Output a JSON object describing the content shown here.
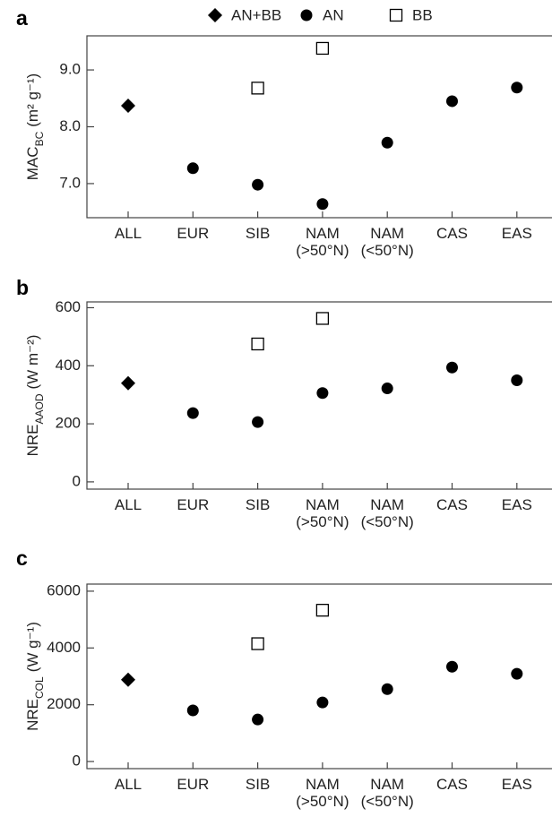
{
  "chart_data": [
    {
      "type": "scatter",
      "label": "a",
      "ylabel": {
        "name": "MAC",
        "subscript": "BC",
        "units": "(m² g⁻¹)"
      },
      "categories": [
        "ALL",
        "EUR",
        "SIB",
        "NAM (>50°N)",
        "NAM (<50°N)",
        "CAS",
        "EAS"
      ],
      "ylim": [
        6.4,
        9.6
      ],
      "yticks": [
        {
          "value": 7,
          "label": "7.0"
        },
        {
          "value": 8,
          "label": "8.0"
        },
        {
          "value": 9,
          "label": "9.0"
        }
      ],
      "series": [
        {
          "name": "AN+BB",
          "marker": "diamond",
          "color": "#000000",
          "values": [
            8.37,
            null,
            null,
            null,
            null,
            null,
            null
          ]
        },
        {
          "name": "AN",
          "marker": "circle",
          "color": "#000000",
          "values": [
            null,
            7.27,
            6.98,
            6.64,
            7.72,
            8.45,
            8.69
          ]
        },
        {
          "name": "BB",
          "marker": "open-square",
          "color": "#000000",
          "values": [
            null,
            null,
            8.68,
            9.38,
            null,
            null,
            null
          ]
        }
      ]
    },
    {
      "type": "scatter",
      "label": "b",
      "ylabel": {
        "name": "NRE",
        "subscript": "AAOD",
        "units": "(W m⁻²)"
      },
      "categories": [
        "ALL",
        "EUR",
        "SIB",
        "NAM (>50°N)",
        "NAM (<50°N)",
        "CAS",
        "EAS"
      ],
      "ylim": [
        -25,
        620
      ],
      "yticks": [
        0,
        200,
        400,
        600
      ],
      "series": [
        {
          "marker": "diamond",
          "color": "#000000",
          "values": [
            340,
            null,
            null,
            null,
            null,
            null,
            null
          ]
        },
        {
          "marker": "circle",
          "color": "#000000",
          "values": [
            null,
            237,
            206,
            306,
            322,
            394,
            350
          ]
        },
        {
          "marker": "open-square",
          "color": "#000000",
          "values": [
            null,
            null,
            475,
            563,
            null,
            null,
            null
          ]
        }
      ]
    },
    {
      "type": "scatter",
      "label": "c",
      "ylabel": {
        "name": "NRE",
        "subscript": "COL",
        "units": "(W g⁻¹)"
      },
      "categories": [
        "ALL",
        "EUR",
        "SIB",
        "NAM (>50°N)",
        "NAM (<50°N)",
        "CAS",
        "EAS"
      ],
      "ylim": [
        -250,
        6250
      ],
      "yticks": [
        0,
        2000,
        4000,
        6000
      ],
      "series": [
        {
          "marker": "diamond",
          "color": "#000000",
          "values": [
            2880,
            null,
            null,
            null,
            null,
            null,
            null
          ]
        },
        {
          "marker": "circle",
          "color": "#000000",
          "values": [
            null,
            1800,
            1480,
            2080,
            2550,
            3340,
            3090
          ]
        },
        {
          "marker": "open-square",
          "color": "#000000",
          "values": [
            null,
            null,
            4150,
            5330,
            null,
            null,
            null
          ]
        }
      ]
    }
  ]
}
